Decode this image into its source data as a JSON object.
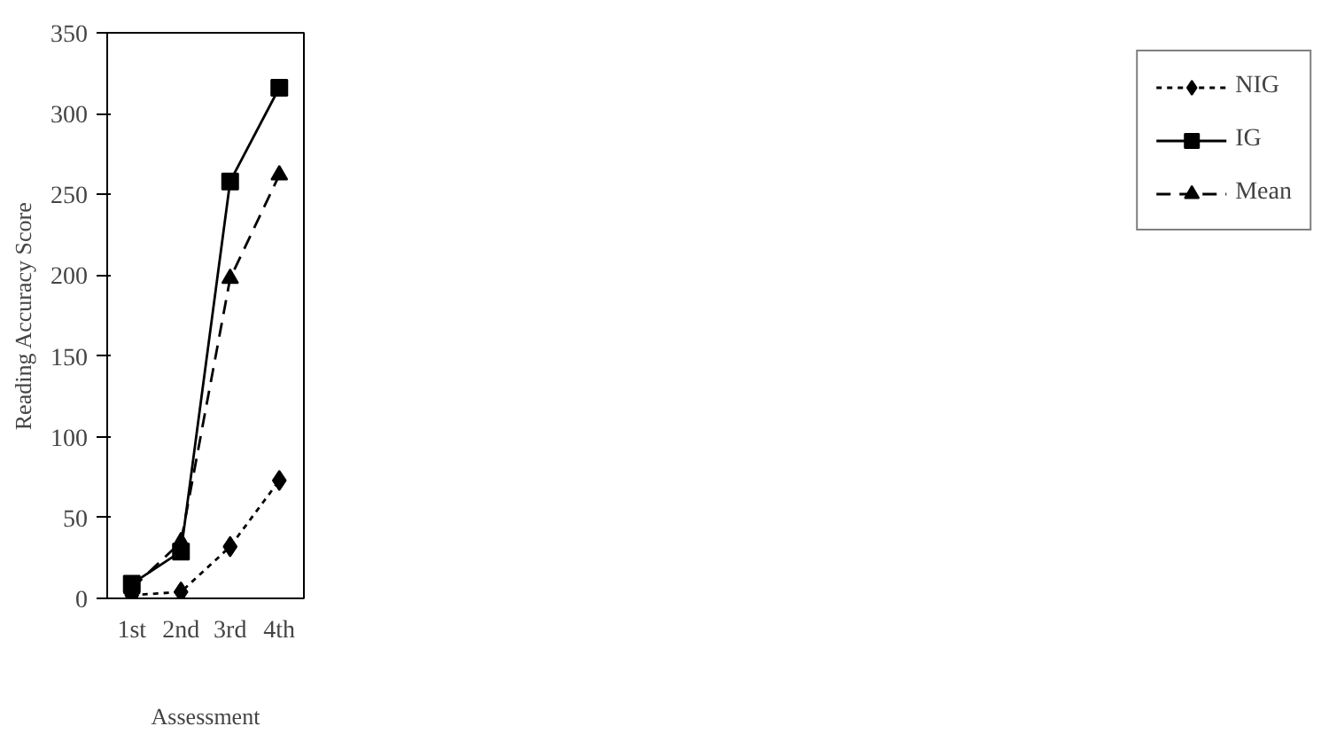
{
  "chart_data": {
    "type": "line",
    "xlabel": "Assessment",
    "ylabel": "Reading Accuracy Score",
    "categories": [
      "1st",
      "2nd",
      "3rd",
      "4th"
    ],
    "series": [
      {
        "name": "NIG",
        "color": "#000000",
        "marker": "diamond",
        "line_style": "dotted",
        "values": [
          2,
          4,
          32,
          73
        ]
      },
      {
        "name": "IG",
        "color": "#000000",
        "marker": "square",
        "line_style": "solid",
        "values": [
          9,
          29,
          258,
          316
        ]
      },
      {
        "name": "Mean",
        "color": "#000000",
        "marker": "triangle",
        "line_style": "dashed",
        "values": [
          6,
          35,
          198,
          262
        ]
      }
    ],
    "ylim": [
      0,
      350
    ],
    "yticks": [
      0,
      50,
      100,
      150,
      200,
      250,
      300,
      350
    ],
    "grid": false,
    "legend": "right"
  }
}
